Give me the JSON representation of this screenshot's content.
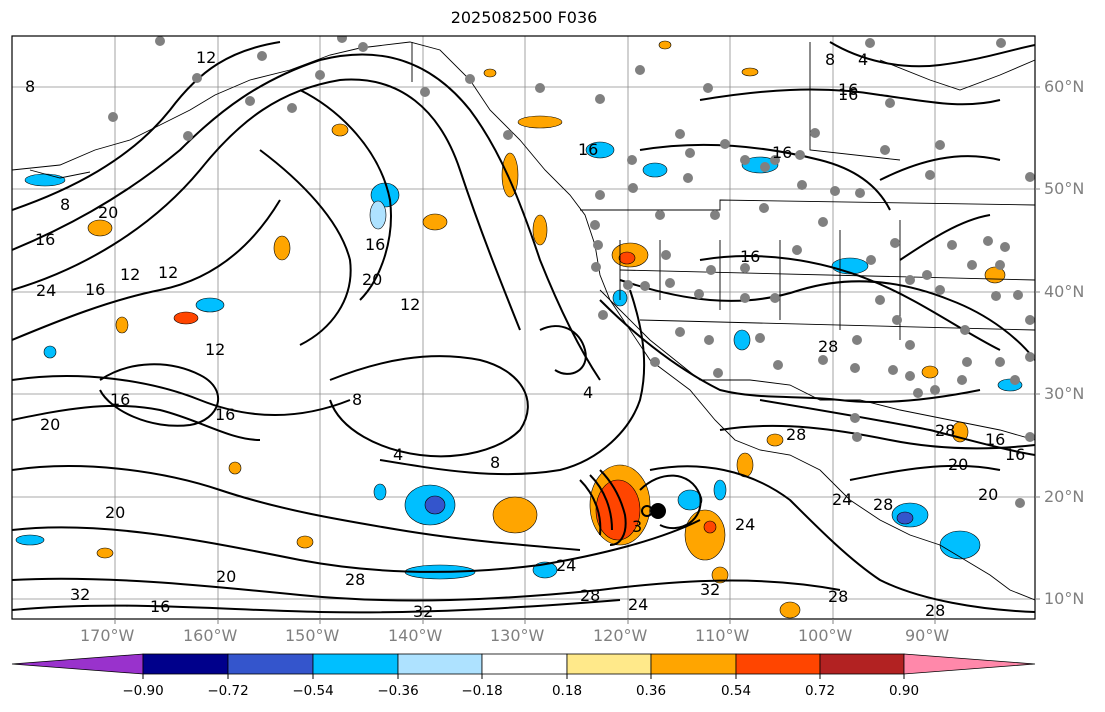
{
  "title": "2025082500 F036",
  "lat_labels": [
    "60°N",
    "50°N",
    "40°N",
    "30°N",
    "20°N",
    "10°N"
  ],
  "lon_labels": [
    "170°W",
    "160°W",
    "150°W",
    "140°W",
    "130°W",
    "120°W",
    "110°W",
    "100°W",
    "90°W"
  ],
  "colorbar": {
    "ticks": [
      "−0.90",
      "−0.72",
      "−0.54",
      "−0.36",
      "−0.18",
      "0.18",
      "0.36",
      "0.54",
      "0.72",
      "0.90"
    ],
    "colors": [
      "#9932cc",
      "#00008b",
      "#3455cc",
      "#00bfff",
      "#aee2ff",
      "#ffffff",
      "#ffe98a",
      "#ffa500",
      "#ff4500",
      "#b22222",
      "#ff88aa"
    ]
  },
  "contour_labels": [
    "12",
    "8",
    "8",
    "16",
    "20",
    "16",
    "24",
    "12",
    "16",
    "12",
    "16",
    "20",
    "12",
    "16",
    "12",
    "16",
    "20",
    "4",
    "8",
    "16",
    "20",
    "16",
    "8",
    "4",
    "16",
    "16",
    "16",
    "16",
    "20",
    "28",
    "28",
    "24",
    "28",
    "32",
    "24",
    "32",
    "28",
    "24",
    "28",
    "32",
    "28",
    "28",
    "20",
    "20",
    "16",
    "24",
    "28",
    "4",
    "8",
    "3"
  ]
}
